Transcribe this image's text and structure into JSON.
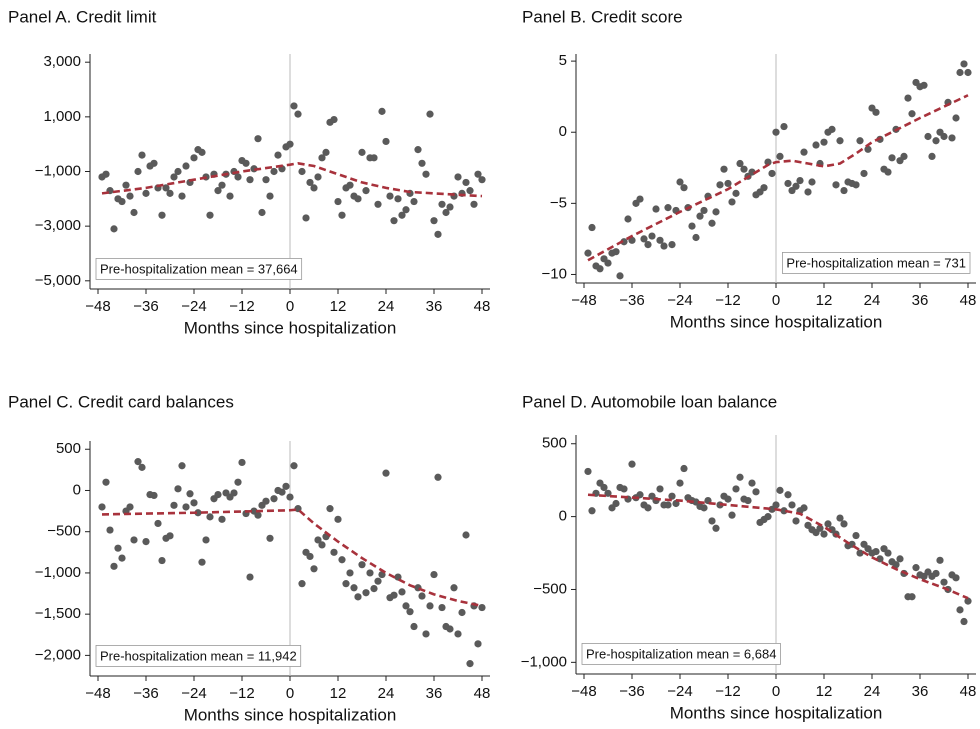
{
  "chart_data": [
    {
      "type": "scatter",
      "title": "Panel A. Credit limit",
      "x_label": "Months since hospitalization",
      "annotation": "Pre-hospitalization mean = 37,664",
      "annotation_position": "bottom-left",
      "xlim": [
        -50,
        50
      ],
      "xticks": [
        {
          "value": -48,
          "label": "−48"
        },
        {
          "value": -36,
          "label": "−36"
        },
        {
          "value": -24,
          "label": "−24"
        },
        {
          "value": -12,
          "label": "−12"
        },
        0,
        12,
        24,
        36,
        48
      ],
      "ylim": [
        -5300,
        3300
      ],
      "yticks": [
        {
          "value": 3000,
          "label": "3,000"
        },
        {
          "value": 1000,
          "label": "1,000"
        },
        {
          "value": -1000,
          "label": "−1,000"
        },
        {
          "value": -3000,
          "label": "−3,000"
        },
        {
          "value": -5000,
          "label": "−5,000"
        }
      ],
      "reference_x": 0,
      "points": {
        "color": "#5a5a5a",
        "x": [
          -47,
          -46,
          -45,
          -44,
          -43,
          -42,
          -41,
          -40,
          -39,
          -38,
          -37,
          -36,
          -35,
          -34,
          -33,
          -32,
          -31,
          -30,
          -29,
          -28,
          -27,
          -26,
          -25,
          -24,
          -23,
          -22,
          -21,
          -20,
          -19,
          -18,
          -17,
          -16,
          -15,
          -14,
          -13,
          -12,
          -11,
          -10,
          -9,
          -8,
          -7,
          -6,
          -5,
          -4,
          -3,
          -2,
          -1,
          0,
          1,
          2,
          3,
          4,
          5,
          6,
          7,
          8,
          9,
          10,
          11,
          12,
          13,
          14,
          15,
          16,
          17,
          18,
          19,
          20,
          21,
          22,
          23,
          24,
          25,
          26,
          27,
          28,
          29,
          30,
          31,
          32,
          33,
          34,
          35,
          36,
          37,
          38,
          39,
          40,
          41,
          42,
          43,
          44,
          45,
          46,
          47,
          48
        ],
        "y": [
          -1200,
          -1100,
          -1700,
          -3100,
          -2000,
          -2100,
          -1500,
          -1900,
          -2500,
          -1000,
          -400,
          -1800,
          -800,
          -700,
          -1600,
          -2600,
          -1600,
          -1800,
          -1200,
          -1000,
          -1900,
          -800,
          -1400,
          -500,
          -200,
          -300,
          -1200,
          -2600,
          -1100,
          -1700,
          -1500,
          -1100,
          -1900,
          -1000,
          -1200,
          -600,
          -700,
          -1300,
          -900,
          200,
          -2500,
          -1300,
          -1900,
          -1000,
          -400,
          -900,
          -100,
          0,
          1400,
          1100,
          -1000,
          -2700,
          -1400,
          -1600,
          -1200,
          -500,
          -300,
          800,
          900,
          -2100,
          -2600,
          -1600,
          -1500,
          -1900,
          -2000,
          -300,
          -1700,
          -500,
          -500,
          -2200,
          1200,
          100,
          -1900,
          -2800,
          -2000,
          -2600,
          -2400,
          -1800,
          -2100,
          -200,
          -700,
          -1100,
          1100,
          -2800,
          -3300,
          -2200,
          -2500,
          -2300,
          -1900,
          -1200,
          -1800,
          -1400,
          -1700,
          -2200,
          -1100,
          -1300
        ]
      },
      "fit": {
        "color": "#a8323c",
        "dashed": true,
        "x": [
          -47,
          -36,
          -24,
          -12,
          0,
          2,
          6,
          12,
          18,
          24,
          30,
          36,
          42,
          48
        ],
        "y": [
          -1800,
          -1600,
          -1300,
          -1000,
          -750,
          -700,
          -800,
          -1100,
          -1400,
          -1600,
          -1750,
          -1800,
          -1850,
          -1900
        ]
      }
    },
    {
      "type": "scatter",
      "title": "Panel B. Credit score",
      "x_label": "Months since hospitalization",
      "annotation": "Pre-hospitalization mean = 731",
      "annotation_position": "bottom-right",
      "xlim": [
        -50,
        50
      ],
      "xticks": [
        {
          "value": -48,
          "label": "−48"
        },
        {
          "value": -36,
          "label": "−36"
        },
        {
          "value": -24,
          "label": "−24"
        },
        {
          "value": -12,
          "label": "−12"
        },
        0,
        12,
        24,
        36,
        48
      ],
      "ylim": [
        -10.6,
        5.5
      ],
      "yticks": [
        5,
        0,
        {
          "value": -5,
          "label": "−5"
        },
        {
          "value": -10,
          "label": "−10"
        }
      ],
      "reference_x": 0,
      "points": {
        "color": "#5a5a5a",
        "x": [
          -47,
          -46,
          -45,
          -44,
          -43,
          -42,
          -41,
          -40,
          -39,
          -38,
          -37,
          -36,
          -35,
          -34,
          -33,
          -32,
          -31,
          -30,
          -29,
          -28,
          -27,
          -26,
          -25,
          -24,
          -23,
          -22,
          -21,
          -20,
          -19,
          -18,
          -17,
          -16,
          -15,
          -14,
          -13,
          -12,
          -11,
          -10,
          -9,
          -8,
          -7,
          -6,
          -5,
          -4,
          -3,
          -2,
          -1,
          0,
          1,
          2,
          3,
          4,
          5,
          6,
          7,
          8,
          9,
          10,
          11,
          12,
          13,
          14,
          15,
          16,
          17,
          18,
          19,
          20,
          21,
          22,
          23,
          24,
          25,
          26,
          27,
          28,
          29,
          30,
          31,
          32,
          33,
          34,
          35,
          36,
          37,
          38,
          39,
          40,
          41,
          42,
          43,
          44,
          45,
          46,
          47,
          48
        ],
        "y": [
          -8.5,
          -6.7,
          -9.4,
          -9.6,
          -8.9,
          -9.2,
          -8.5,
          -8.4,
          -10.1,
          -7.7,
          -6.1,
          -7.6,
          -5,
          -4.7,
          -7.5,
          -7.9,
          -7.3,
          -5.4,
          -7.6,
          -8,
          -5.3,
          -7.9,
          -5.5,
          -3.5,
          -3.9,
          -5.3,
          -6.6,
          -7.4,
          -5.9,
          -5.5,
          -4.5,
          -6.4,
          -5.6,
          -3.7,
          -2.6,
          -3.6,
          -4.9,
          -4.3,
          -2.2,
          -2.6,
          -3.1,
          -2.8,
          -4.4,
          -4.2,
          -3.9,
          -2.1,
          -2.9,
          0,
          -1.7,
          0.4,
          -3.6,
          -4.1,
          -3.8,
          -3.4,
          -1.4,
          -4.2,
          -3.5,
          -0.9,
          -2.2,
          -0.7,
          0,
          0.2,
          -3.7,
          -0.6,
          -4.1,
          -3.5,
          -3.6,
          -3.7,
          -0.6,
          -2.9,
          -1.2,
          1.7,
          1.4,
          -0.5,
          -2.6,
          -2.8,
          -1.8,
          0.2,
          -2,
          -1.7,
          2.4,
          1.3,
          3.5,
          3.2,
          3.3,
          -0.3,
          -1.7,
          -0.6,
          0,
          -0.3,
          2.1,
          -0.4,
          1,
          4.2,
          4.8,
          4.2
        ]
      },
      "fit": {
        "color": "#a8323c",
        "dashed": true,
        "x": [
          -47,
          -36,
          -24,
          -12,
          -2,
          0,
          4,
          8,
          12,
          16,
          20,
          24,
          36,
          48
        ],
        "y": [
          -9,
          -7.3,
          -5.6,
          -4,
          -2.3,
          -2.1,
          -2,
          -2.2,
          -2.4,
          -2.2,
          -1.5,
          -0.7,
          1,
          2.6
        ]
      }
    },
    {
      "type": "scatter",
      "title": "Panel C. Credit card balances",
      "x_label": "Months since hospitalization",
      "annotation": "Pre-hospitalization mean = 11,942",
      "annotation_position": "bottom-left",
      "xlim": [
        -50,
        50
      ],
      "xticks": [
        {
          "value": -48,
          "label": "−48"
        },
        {
          "value": -36,
          "label": "−36"
        },
        {
          "value": -24,
          "label": "−24"
        },
        {
          "value": -12,
          "label": "−12"
        },
        0,
        12,
        24,
        36,
        48
      ],
      "ylim": [
        -2250,
        600
      ],
      "yticks": [
        500,
        0,
        {
          "value": -500,
          "label": "−500"
        },
        {
          "value": -1000,
          "label": "−1,000"
        },
        {
          "value": -1500,
          "label": "−1,500"
        },
        {
          "value": -2000,
          "label": "−2,000"
        }
      ],
      "reference_x": 0,
      "points": {
        "color": "#5a5a5a",
        "x": [
          -47,
          -46,
          -45,
          -44,
          -43,
          -42,
          -41,
          -40,
          -39,
          -38,
          -37,
          -36,
          -35,
          -34,
          -33,
          -32,
          -31,
          -30,
          -29,
          -28,
          -27,
          -26,
          -25,
          -24,
          -23,
          -22,
          -21,
          -20,
          -19,
          -18,
          -17,
          -16,
          -15,
          -14,
          -13,
          -12,
          -11,
          -10,
          -9,
          -8,
          -7,
          -6,
          -5,
          -4,
          -3,
          -2,
          -1,
          0,
          1,
          2,
          3,
          4,
          5,
          6,
          7,
          8,
          9,
          10,
          11,
          12,
          13,
          14,
          15,
          16,
          17,
          18,
          19,
          20,
          21,
          22,
          23,
          24,
          25,
          26,
          27,
          28,
          29,
          30,
          31,
          32,
          33,
          34,
          35,
          36,
          37,
          38,
          39,
          40,
          41,
          42,
          43,
          44,
          45,
          46,
          47,
          48
        ],
        "y": [
          -200,
          100,
          -480,
          -920,
          -700,
          -820,
          -250,
          -200,
          -600,
          350,
          280,
          -620,
          -50,
          -60,
          -400,
          -850,
          -580,
          -550,
          -180,
          20,
          300,
          -200,
          -40,
          -150,
          -270,
          -870,
          -600,
          -320,
          -100,
          -50,
          -350,
          -30,
          -80,
          -30,
          100,
          340,
          -280,
          -1050,
          -250,
          -300,
          -180,
          -130,
          -580,
          -100,
          0,
          -20,
          50,
          -80,
          300,
          -220,
          -1130,
          -750,
          -800,
          -950,
          -600,
          -660,
          -560,
          -220,
          -750,
          -350,
          -840,
          -1130,
          -1000,
          -1180,
          -1290,
          -900,
          -1240,
          -1000,
          -1190,
          -1100,
          -1020,
          210,
          -1300,
          -1270,
          -1050,
          -1230,
          -1400,
          -1470,
          -1650,
          -1180,
          -1280,
          -1740,
          -1400,
          -1020,
          160,
          -1420,
          -1650,
          -1680,
          -1180,
          -1740,
          -1480,
          -540,
          -2100,
          -1400,
          -1860,
          -1420
        ]
      },
      "fit": {
        "color": "#a8323c",
        "dashed": true,
        "x": [
          -47,
          -24,
          0,
          2,
          6,
          12,
          18,
          24,
          30,
          36,
          42,
          48
        ],
        "y": [
          -290,
          -270,
          -240,
          -230,
          -400,
          -620,
          -820,
          -1000,
          -1150,
          -1260,
          -1340,
          -1400
        ]
      }
    },
    {
      "type": "scatter",
      "title": "Panel D. Automobile loan balance",
      "x_label": "Months since hospitalization",
      "annotation": "Pre-hospitalization mean = 6,684",
      "annotation_position": "bottom-left",
      "xlim": [
        -50,
        50
      ],
      "xticks": [
        {
          "value": -48,
          "label": "−48"
        },
        {
          "value": -36,
          "label": "−36"
        },
        {
          "value": -24,
          "label": "−24"
        },
        {
          "value": -12,
          "label": "−12"
        },
        0,
        12,
        24,
        36,
        48
      ],
      "ylim": [
        -1080,
        560
      ],
      "yticks": [
        500,
        0,
        {
          "value": -500,
          "label": "−500"
        },
        {
          "value": -1000,
          "label": "−1,000"
        }
      ],
      "reference_x": 0,
      "points": {
        "color": "#5a5a5a",
        "x": [
          -47,
          -46,
          -45,
          -44,
          -43,
          -42,
          -41,
          -40,
          -39,
          -38,
          -37,
          -36,
          -35,
          -34,
          -33,
          -32,
          -31,
          -30,
          -29,
          -28,
          -27,
          -26,
          -25,
          -24,
          -23,
          -22,
          -21,
          -20,
          -19,
          -18,
          -17,
          -16,
          -15,
          -14,
          -13,
          -12,
          -11,
          -10,
          -9,
          -8,
          -7,
          -6,
          -5,
          -4,
          -3,
          -2,
          -1,
          0,
          1,
          2,
          3,
          4,
          5,
          6,
          7,
          8,
          9,
          10,
          11,
          12,
          13,
          14,
          15,
          16,
          17,
          18,
          19,
          20,
          21,
          22,
          23,
          24,
          25,
          26,
          27,
          28,
          29,
          30,
          31,
          32,
          33,
          34,
          35,
          36,
          37,
          38,
          39,
          40,
          41,
          42,
          43,
          44,
          45,
          46,
          47,
          48
        ],
        "y": [
          310,
          40,
          160,
          230,
          200,
          160,
          60,
          90,
          200,
          190,
          120,
          360,
          130,
          150,
          80,
          60,
          140,
          110,
          190,
          80,
          80,
          140,
          90,
          230,
          330,
          130,
          110,
          100,
          70,
          60,
          110,
          -30,
          -80,
          80,
          140,
          120,
          10,
          190,
          270,
          120,
          110,
          230,
          170,
          -40,
          -20,
          0,
          50,
          80,
          180,
          40,
          150,
          80,
          -30,
          40,
          60,
          -60,
          -90,
          -110,
          -80,
          -120,
          -50,
          -90,
          -120,
          -10,
          -50,
          -200,
          -190,
          -130,
          -250,
          -190,
          -220,
          -250,
          -240,
          -290,
          -220,
          -250,
          -310,
          -330,
          -290,
          -390,
          -550,
          -550,
          -350,
          -400,
          -410,
          -380,
          -410,
          -390,
          -300,
          -450,
          -500,
          -400,
          -420,
          -640,
          -720,
          -580
        ]
      },
      "fit": {
        "color": "#a8323c",
        "dashed": true,
        "x": [
          -47,
          -24,
          -12,
          0,
          6,
          12,
          18,
          24,
          30,
          36,
          42,
          48
        ],
        "y": [
          150,
          110,
          80,
          50,
          20,
          -70,
          -180,
          -280,
          -360,
          -430,
          -490,
          -560
        ]
      }
    }
  ]
}
